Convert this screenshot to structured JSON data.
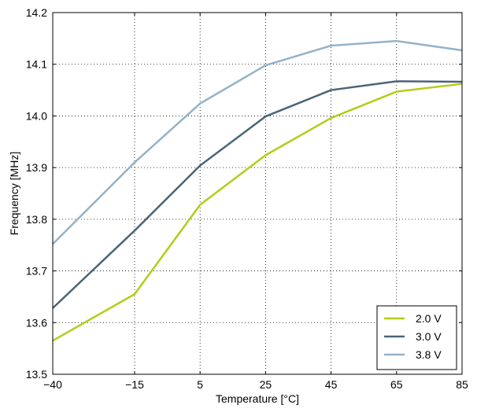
{
  "chart_data": {
    "type": "line",
    "title": "",
    "xlabel": "Temperature [°C]",
    "ylabel": "Frequency [MHz]",
    "x": [
      -40,
      -15,
      5,
      25,
      45,
      65,
      85
    ],
    "x_ticks": [
      -40,
      -15,
      5,
      25,
      45,
      65,
      85
    ],
    "x_tick_labels": [
      "−40",
      "−15",
      "5",
      "25",
      "45",
      "65",
      "85"
    ],
    "xlim": [
      -40,
      85
    ],
    "ylim": [
      13.5,
      14.2
    ],
    "y_ticks": [
      13.5,
      13.6,
      13.7,
      13.8,
      13.9,
      14.0,
      14.1,
      14.2
    ],
    "y_tick_labels": [
      "13.5",
      "13.6",
      "13.7",
      "13.8",
      "13.9",
      "14.0",
      "14.1",
      "14.2"
    ],
    "grid": true,
    "legend_position": "bottom-right",
    "series": [
      {
        "name": "2.0 V",
        "color": "#b5cc18",
        "values": [
          13.565,
          13.655,
          13.828,
          13.924,
          13.996,
          14.047,
          14.062
        ]
      },
      {
        "name": "3.0 V",
        "color": "#4a6578",
        "values": [
          13.628,
          13.778,
          13.904,
          13.999,
          14.05,
          14.067,
          14.066
        ]
      },
      {
        "name": "3.8 V",
        "color": "#93b2c8",
        "values": [
          13.752,
          13.91,
          14.024,
          14.098,
          14.136,
          14.145,
          14.127
        ]
      }
    ]
  }
}
